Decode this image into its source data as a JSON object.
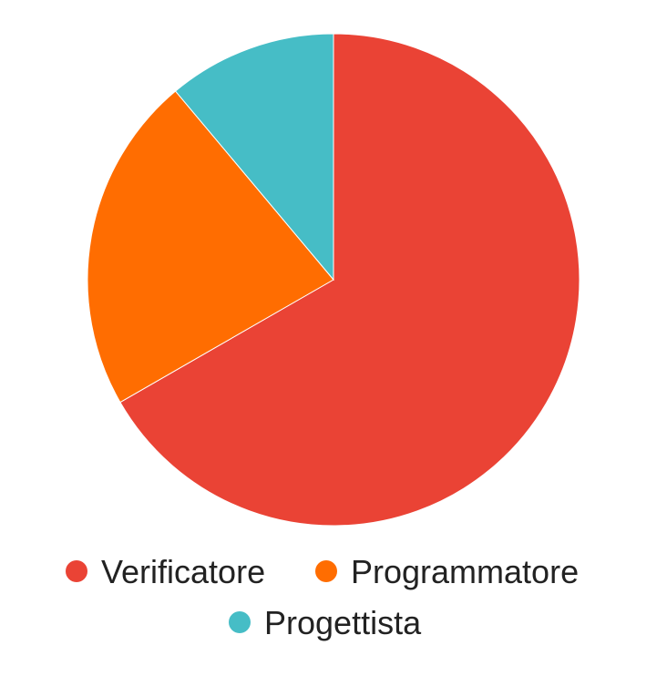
{
  "chart_data": {
    "type": "pie",
    "start_angle": "top",
    "direction": "clockwise",
    "legend_position": "bottom",
    "slices": [
      {
        "label": "Verificatore",
        "value": 66.7,
        "color": "#EA4335"
      },
      {
        "label": "Programmatore",
        "value": 22.2,
        "color": "#FF6D01"
      },
      {
        "label": "Progettista",
        "value": 11.1,
        "color": "#46BDC6"
      }
    ]
  }
}
